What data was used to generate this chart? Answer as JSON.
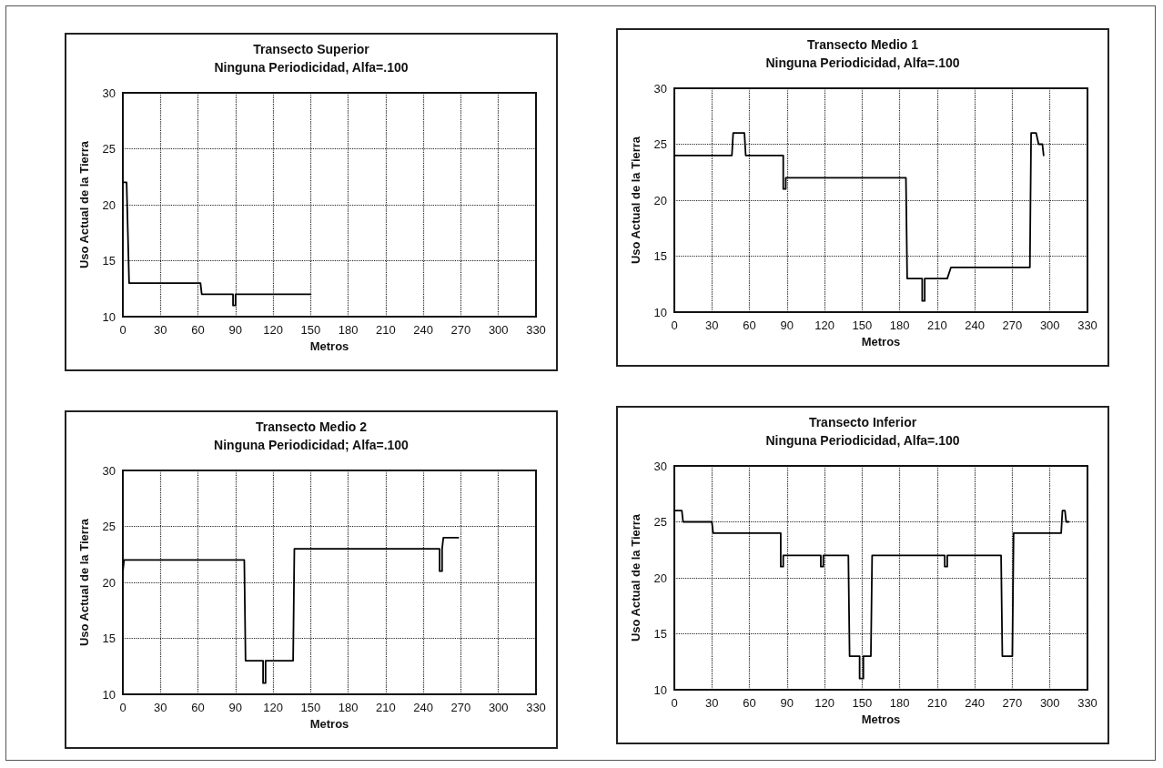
{
  "chart_data": [
    {
      "type": "line",
      "title": "Transecto Superior",
      "subtitle": "Ninguna Periodicidad, Alfa=.100",
      "xlabel": "Metros",
      "ylabel": "Uso Actual de la Tierra",
      "xlim": [
        0,
        330
      ],
      "xticks": [
        0,
        30,
        60,
        90,
        120,
        150,
        180,
        210,
        240,
        270,
        300,
        330
      ],
      "ylim": [
        10,
        30
      ],
      "yticks": [
        10,
        15,
        20,
        25,
        30
      ],
      "grid": true,
      "marker": "none",
      "line_style": "solid",
      "series": [
        {
          "color": "#000000",
          "x": [
            0,
            3,
            5,
            62,
            63,
            88,
            88,
            90,
            90,
            150
          ],
          "values": [
            22,
            22,
            13,
            13,
            12,
            12,
            11,
            11,
            12,
            12
          ]
        }
      ]
    },
    {
      "type": "line",
      "title": "Transecto Medio 1",
      "subtitle": "Ninguna Periodicidad, Alfa=.100",
      "xlabel": "Metros",
      "ylabel": "Uso Actual de la Tierra",
      "xlim": [
        0,
        330
      ],
      "xticks": [
        0,
        30,
        60,
        90,
        120,
        150,
        180,
        210,
        240,
        270,
        300,
        330
      ],
      "ylim": [
        10,
        30
      ],
      "yticks": [
        10,
        15,
        20,
        25,
        30
      ],
      "grid": true,
      "marker": "none",
      "line_style": "solid",
      "series": [
        {
          "color": "#000000",
          "x": [
            0,
            46,
            47,
            56,
            57,
            87,
            87,
            89,
            89,
            185,
            186,
            198,
            198,
            200,
            200,
            218,
            221,
            284,
            285,
            289,
            291,
            294,
            295
          ],
          "values": [
            24,
            24,
            26,
            26,
            24,
            24,
            21,
            21,
            22,
            22,
            13,
            13,
            11,
            11,
            13,
            13,
            14,
            14,
            26,
            26,
            25,
            25,
            24
          ]
        }
      ]
    },
    {
      "type": "line",
      "title": "Transecto Medio 2",
      "subtitle": "Ninguna Periodicidad; Alfa=.100",
      "xlabel": "Metros",
      "ylabel": "Uso Actual de la Tierra",
      "xlim": [
        0,
        330
      ],
      "xticks": [
        0,
        30,
        60,
        90,
        120,
        150,
        180,
        210,
        240,
        270,
        300,
        330
      ],
      "ylim": [
        10,
        30
      ],
      "yticks": [
        10,
        15,
        20,
        25,
        30
      ],
      "grid": true,
      "marker": "none",
      "line_style": "solid",
      "series": [
        {
          "color": "#000000",
          "x": [
            0,
            1,
            97,
            98,
            112,
            112,
            114,
            114,
            136,
            137,
            253,
            253,
            255,
            255,
            256,
            268
          ],
          "values": [
            21,
            22,
            22,
            13,
            13,
            11,
            11,
            13,
            13,
            23,
            23,
            21,
            21,
            23,
            24,
            24
          ]
        }
      ]
    },
    {
      "type": "line",
      "title": "Transecto Inferior",
      "subtitle": "Ninguna Periodicidad, Alfa=.100",
      "xlabel": "Metros",
      "ylabel": "Uso Actual de la Tierra",
      "xlim": [
        0,
        330
      ],
      "xticks": [
        0,
        30,
        60,
        90,
        120,
        150,
        180,
        210,
        240,
        270,
        300,
        330
      ],
      "ylim": [
        10,
        30
      ],
      "yticks": [
        10,
        15,
        20,
        25,
        30
      ],
      "grid": true,
      "marker": "none",
      "line_style": "solid",
      "series": [
        {
          "color": "#000000",
          "x": [
            0,
            6,
            7,
            30,
            31,
            85,
            85,
            87,
            87,
            117,
            117,
            119,
            119,
            139,
            140,
            148,
            148,
            151,
            151,
            157,
            158,
            216,
            216,
            218,
            218,
            261,
            262,
            270,
            271,
            309,
            310,
            312,
            313,
            315
          ],
          "values": [
            26,
            26,
            25,
            25,
            24,
            24,
            21,
            21,
            22,
            22,
            21,
            21,
            22,
            22,
            13,
            13,
            11,
            11,
            13,
            13,
            22,
            22,
            21,
            21,
            22,
            22,
            13,
            13,
            24,
            24,
            26,
            26,
            25,
            25
          ]
        }
      ]
    }
  ]
}
